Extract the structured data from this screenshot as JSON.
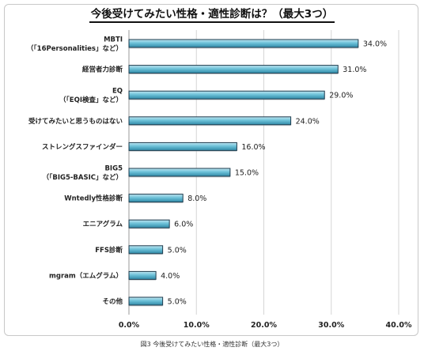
{
  "chart_data": {
    "type": "bar",
    "orientation": "horizontal",
    "title": "今後受けてみたい性格・適性診断は？（最大3つ）",
    "caption": "図3 今後受けてみたい性格・適性診断（最大3つ）",
    "categories": [
      [
        "MBTI",
        "（「16Personalities」など）"
      ],
      [
        "経営者力診断"
      ],
      [
        "EQ",
        "（「EQI検査」など）"
      ],
      [
        "受けてみたいと思うものはない"
      ],
      [
        "ストレングスファインダー"
      ],
      [
        "BIG5",
        "（「BIG5-BASIC」など）"
      ],
      [
        "Wntedly性格診断"
      ],
      [
        "エニアグラム"
      ],
      [
        "FFS診断"
      ],
      [
        "mgram（エムグラム）"
      ],
      [
        "その他"
      ]
    ],
    "values": [
      34.0,
      31.0,
      29.0,
      24.0,
      16.0,
      15.0,
      8.0,
      6.0,
      5.0,
      4.0,
      5.0
    ],
    "value_labels": [
      "34.0%",
      "31.0%",
      "29.0%",
      "24.0%",
      "16.0%",
      "15.0%",
      "8.0%",
      "6.0%",
      "5.0%",
      "4.0%",
      "5.0%"
    ],
    "xlim": [
      0,
      40
    ],
    "xticks": [
      0,
      10,
      20,
      30,
      40
    ],
    "xtick_labels": [
      "0.0%",
      "10.0%",
      "20.0%",
      "30.0%",
      "40.0%"
    ],
    "grid": true,
    "bar_color": "#5fb6cf",
    "bar_edge_color": "#1f3b4d"
  }
}
